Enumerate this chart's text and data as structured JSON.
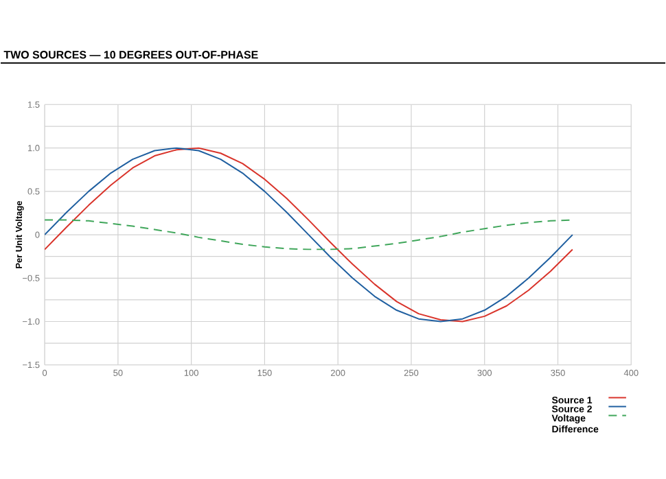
{
  "chart_data": {
    "type": "line",
    "title": "TWO SOURCES — 10 DEGREES OUT-OF-PHASE",
    "ylabel": "Per Unit Voltage",
    "x": [
      0,
      15,
      30,
      45,
      60,
      75,
      90,
      105,
      120,
      135,
      150,
      165,
      180,
      195,
      210,
      225,
      240,
      255,
      270,
      285,
      300,
      315,
      330,
      345,
      360
    ],
    "series": [
      {
        "name": "Source 1",
        "color": "#d9342b",
        "line_style": "solid",
        "values": [
          -0.17,
          0.09,
          0.34,
          0.57,
          0.77,
          0.91,
          0.98,
          1.0,
          0.94,
          0.82,
          0.64,
          0.42,
          0.17,
          -0.09,
          -0.34,
          -0.57,
          -0.77,
          -0.91,
          -0.98,
          -1.0,
          -0.94,
          -0.82,
          -0.64,
          -0.42,
          -0.17
        ]
      },
      {
        "name": "Source 2",
        "color": "#1f5fa0",
        "line_style": "solid",
        "values": [
          0,
          0.26,
          0.5,
          0.71,
          0.87,
          0.97,
          1.0,
          0.97,
          0.87,
          0.71,
          0.5,
          0.26,
          0,
          -0.26,
          -0.5,
          -0.71,
          -0.87,
          -0.97,
          -1.0,
          -0.97,
          -0.87,
          -0.71,
          -0.5,
          -0.26,
          0
        ]
      },
      {
        "name": "Voltage Difference",
        "color": "#3fa65a",
        "line_style": "dashed",
        "values": [
          0.17,
          0.17,
          0.16,
          0.13,
          0.1,
          0.06,
          0.02,
          -0.03,
          -0.07,
          -0.11,
          -0.14,
          -0.16,
          -0.17,
          -0.17,
          -0.16,
          -0.13,
          -0.1,
          -0.06,
          -0.02,
          0.03,
          0.07,
          0.11,
          0.14,
          0.16,
          0.17
        ]
      }
    ],
    "xlim": [
      0,
      400
    ],
    "xticks": [
      0,
      50,
      100,
      150,
      200,
      250,
      300,
      350,
      400
    ],
    "ylim": [
      -1.5,
      1.5
    ],
    "yticks": [
      {
        "value": -1.5,
        "label": "−1.5"
      },
      {
        "value": -1.0,
        "label": "−1.0"
      },
      {
        "value": -0.5,
        "label": "−0.5"
      },
      0,
      {
        "value": 0.5,
        "label": "0.5"
      },
      {
        "value": 1.0,
        "label": "1.0"
      },
      {
        "value": 1.5,
        "label": "1.5"
      }
    ],
    "grid": true,
    "legend": "bottom right",
    "marker": "none"
  }
}
